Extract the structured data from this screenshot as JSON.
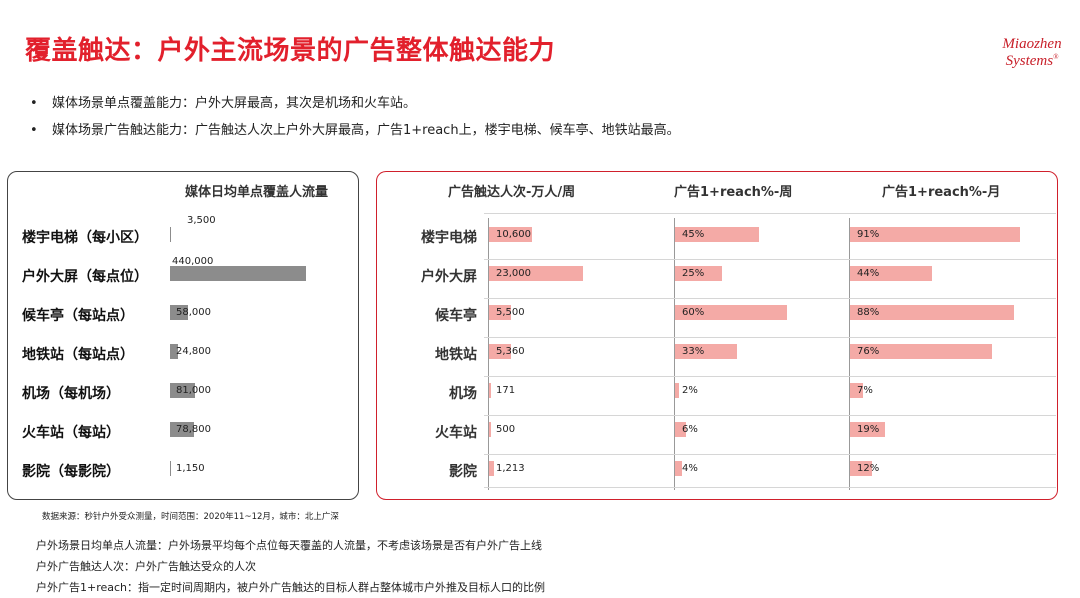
{
  "title": "覆盖触达：户外主流场景的广告整体触达能力",
  "logo": {
    "line1": "Miaozhen",
    "line2": "Systems",
    "mark": "®"
  },
  "bullets": [
    "媒体场景单点覆盖能力：户外大屏最高，其次是机场和火车站。",
    "媒体场景广告触达能力：广告触达人次上户外大屏最高，广告1+reach上，楼宇电梯、候车亭、地铁站最高。"
  ],
  "left_table": {
    "header": "媒体日均单点覆盖人流量",
    "rows": [
      {
        "label": "楼宇电梯（每小区）",
        "value_text": "3,500",
        "value": 3500
      },
      {
        "label": "户外大屏（每点位）",
        "value_text": "440,000",
        "value": 440000
      },
      {
        "label": "候车亭（每站点）",
        "value_text": "58,000",
        "value": 58000
      },
      {
        "label": "地铁站（每站点）",
        "value_text": "24,800",
        "value": 24800
      },
      {
        "label": "机场（每机场）",
        "value_text": "81,000",
        "value": 81000
      },
      {
        "label": "火车站（每站）",
        "value_text": "78,800",
        "value": 78800
      },
      {
        "label": "影院（每影院）",
        "value_text": "1,150",
        "value": 1150
      }
    ]
  },
  "right_table": {
    "headers": [
      "广告触达人次-万人/周",
      "广告1+reach%-周",
      "广告1+reach%-月"
    ],
    "rows": [
      {
        "label": "楼宇电梯",
        "impr_text": "10,600",
        "impr": 10600,
        "week_text": "45%",
        "week": 45,
        "month_text": "91%",
        "month": 91
      },
      {
        "label": "户外大屏",
        "impr_text": "23,000",
        "impr": 23000,
        "week_text": "25%",
        "week": 25,
        "month_text": "44%",
        "month": 44
      },
      {
        "label": "候车亭",
        "impr_text": "5,500",
        "impr": 5500,
        "week_text": "60%",
        "week": 60,
        "month_text": "88%",
        "month": 88
      },
      {
        "label": "地铁站",
        "impr_text": "5,360",
        "impr": 5360,
        "week_text": "33%",
        "week": 33,
        "month_text": "76%",
        "month": 76
      },
      {
        "label": "机场",
        "impr_text": "171",
        "impr": 171,
        "week_text": "2%",
        "week": 2,
        "month_text": "7%",
        "month": 7
      },
      {
        "label": "火车站",
        "impr_text": "500",
        "impr": 500,
        "week_text": "6%",
        "week": 6,
        "month_text": "19%",
        "month": 19
      },
      {
        "label": "影院",
        "impr_text": "1,213",
        "impr": 1213,
        "week_text": "4%",
        "week": 4,
        "month_text": "12%",
        "month": 12
      }
    ]
  },
  "source_note": "数据来源：秒针户外受众测量，时间范围：2020年11~12月，城市：北上广深",
  "definitions": [
    "户外场景日均单点人流量：户外场景平均每个点位每天覆盖的人流量，不考虑该场景是否有户外广告上线",
    "户外广告触达人次：户外广告触达受众的人次",
    "户外广告1+reach：指一定时间周期内，被户外广告触达的目标人群占整体城市户外推及目标人口的比例"
  ],
  "colors": {
    "title": "#e2202c",
    "grey_bar": "#8c8c8c",
    "pink_bar": "#f4aaa6",
    "right_border": "#d0202c"
  },
  "chart_data": [
    {
      "type": "bar",
      "title": "媒体日均单点覆盖人流量",
      "categories": [
        "楼宇电梯（每小区）",
        "户外大屏（每点位）",
        "候车亭（每站点）",
        "地铁站（每站点）",
        "机场（每机场）",
        "火车站（每站）",
        "影院（每影院）"
      ],
      "values": [
        3500,
        440000,
        58000,
        24800,
        81000,
        78800,
        1150
      ],
      "xlim": [
        0,
        440000
      ]
    },
    {
      "type": "bar",
      "title": "广告触达人次-万人/周",
      "categories": [
        "楼宇电梯",
        "户外大屏",
        "候车亭",
        "地铁站",
        "机场",
        "火车站",
        "影院"
      ],
      "values": [
        10600,
        23000,
        5500,
        5360,
        171,
        500,
        1213
      ],
      "xlim": [
        0,
        23000
      ]
    },
    {
      "type": "bar",
      "title": "广告1+reach%-周",
      "categories": [
        "楼宇电梯",
        "户外大屏",
        "候车亭",
        "地铁站",
        "机场",
        "火车站",
        "影院"
      ],
      "values": [
        45,
        25,
        60,
        33,
        2,
        6,
        4
      ],
      "xlim": [
        0,
        60
      ]
    },
    {
      "type": "bar",
      "title": "广告1+reach%-月",
      "categories": [
        "楼宇电梯",
        "户外大屏",
        "候车亭",
        "地铁站",
        "机场",
        "火车站",
        "影院"
      ],
      "values": [
        91,
        44,
        88,
        76,
        7,
        19,
        12
      ],
      "xlim": [
        0,
        91
      ]
    }
  ]
}
